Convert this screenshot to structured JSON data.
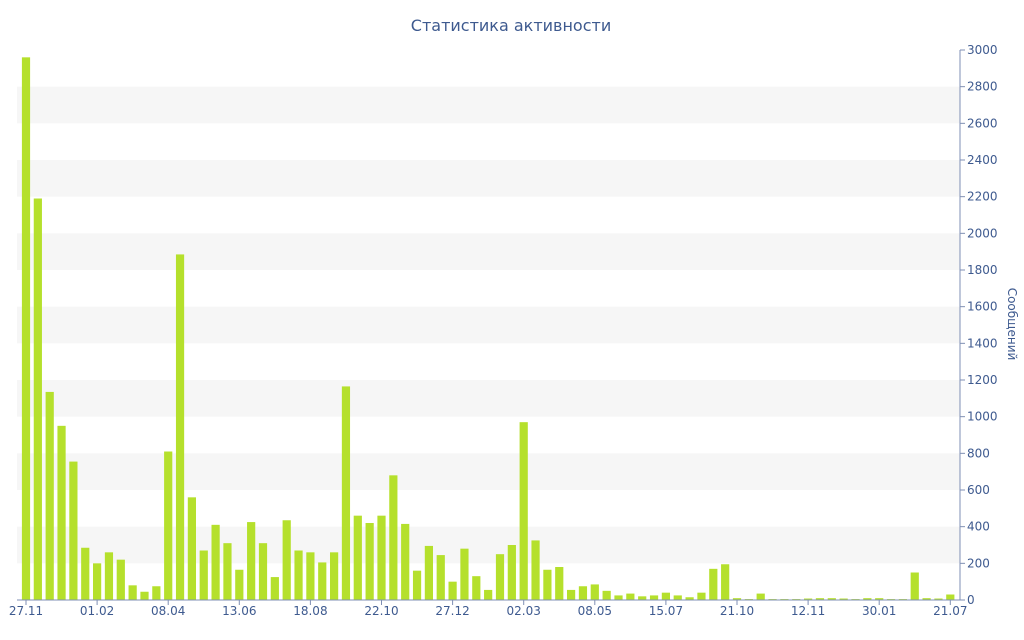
{
  "colors": {
    "bar": "#b5e02c",
    "text": "#3e5a8f",
    "band": "#f6f6f6",
    "axis": "#7f8fb4"
  },
  "chart_data": {
    "type": "bar",
    "title": "Статистика активности",
    "ylabel": "Сообщений",
    "xlabel": "",
    "ylim": [
      0,
      3000
    ],
    "yticks": [
      0,
      200,
      400,
      600,
      800,
      1000,
      1200,
      1400,
      1600,
      1800,
      2000,
      2200,
      2400,
      2600,
      2800,
      3000
    ],
    "y_axis_side": "right",
    "grid": "alternating horizontal bands",
    "legend": "none",
    "x_tick_labels": [
      {
        "label": "27.11",
        "index": 0
      },
      {
        "label": "01.02",
        "index": 6
      },
      {
        "label": "08.04",
        "index": 12
      },
      {
        "label": "13.06",
        "index": 18
      },
      {
        "label": "18.08",
        "index": 24
      },
      {
        "label": "22.10",
        "index": 30
      },
      {
        "label": "27.12",
        "index": 36
      },
      {
        "label": "02.03",
        "index": 42
      },
      {
        "label": "08.05",
        "index": 48
      },
      {
        "label": "15.07",
        "index": 54
      },
      {
        "label": "21.10",
        "index": 60
      },
      {
        "label": "12.11",
        "index": 66
      },
      {
        "label": "30.01",
        "index": 72
      },
      {
        "label": "21.07",
        "index": 78
      }
    ],
    "values": [
      2960,
      2190,
      1135,
      950,
      755,
      285,
      200,
      260,
      220,
      80,
      45,
      75,
      810,
      1885,
      560,
      270,
      410,
      310,
      165,
      425,
      310,
      125,
      435,
      270,
      260,
      205,
      260,
      1165,
      460,
      420,
      460,
      680,
      415,
      160,
      295,
      245,
      100,
      280,
      130,
      55,
      250,
      300,
      970,
      325,
      165,
      180,
      55,
      75,
      85,
      50,
      25,
      35,
      20,
      25,
      40,
      25,
      15,
      40,
      170,
      195,
      10,
      5,
      35,
      5,
      5,
      5,
      8,
      10,
      10,
      8,
      5,
      10,
      10,
      5,
      5,
      150,
      10,
      8,
      30
    ]
  }
}
